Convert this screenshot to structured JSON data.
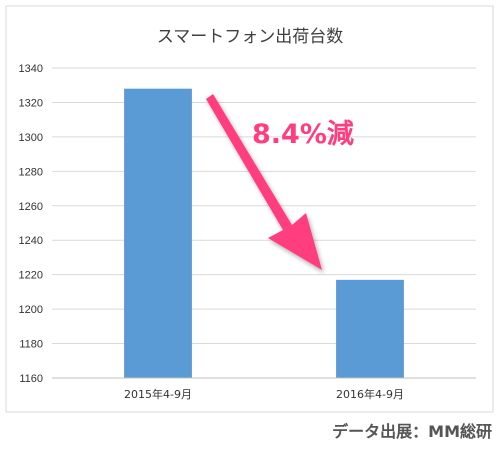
{
  "chart_data": {
    "type": "bar",
    "title": "スマートフォン出荷台数",
    "categories": [
      "2015年4-9月",
      "2016年4-9月"
    ],
    "values": [
      1328,
      1217
    ],
    "ylim": [
      1160,
      1340
    ],
    "yticks": [
      1160,
      1180,
      1200,
      1220,
      1240,
      1260,
      1280,
      1300,
      1320,
      1340
    ],
    "xlabel": "",
    "ylabel": "",
    "grid": true,
    "legend": "none",
    "annotation": "8.4%減",
    "bar_color": "#5b9bd5",
    "annotation_color": "#ff3d7f"
  },
  "source": "データ出展：MM総研"
}
